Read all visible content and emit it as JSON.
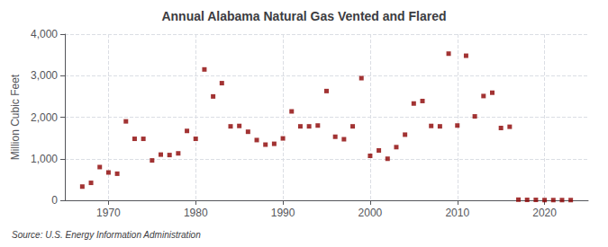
{
  "chart_data": {
    "type": "scatter",
    "title": "Annual Alabama Natural Gas Vented and Flared",
    "ylabel": "Million Cubic Feet",
    "annotation": "Source: U.S. Energy Information Administration",
    "color": "#8b0000",
    "marker": "square",
    "grid": true,
    "x": [
      1967,
      1968,
      1969,
      1970,
      1971,
      1972,
      1973,
      1974,
      1975,
      1976,
      1977,
      1978,
      1979,
      1980,
      1981,
      1982,
      1983,
      1984,
      1985,
      1986,
      1987,
      1988,
      1989,
      1990,
      1991,
      1992,
      1993,
      1994,
      1995,
      1996,
      1997,
      1998,
      1999,
      2000,
      2001,
      2002,
      2003,
      2004,
      2005,
      2006,
      2007,
      2008,
      2009,
      2010,
      2011,
      2012,
      2013,
      2014,
      2015,
      2016,
      2017,
      2018,
      2019,
      2020,
      2021,
      2022,
      2023
    ],
    "values": [
      330,
      420,
      800,
      670,
      640,
      1900,
      1480,
      1480,
      960,
      1100,
      1090,
      1130,
      1670,
      1480,
      3150,
      2500,
      2820,
      1780,
      1790,
      1650,
      1450,
      1340,
      1360,
      1490,
      2140,
      1780,
      1780,
      1800,
      2630,
      1530,
      1470,
      1780,
      2940,
      1070,
      1200,
      1000,
      1280,
      1580,
      2330,
      2390,
      1790,
      1780,
      3530,
      1800,
      3480,
      2020,
      2510,
      2590,
      1740,
      1770,
      15,
      10,
      10,
      5,
      5,
      5,
      5
    ],
    "xlim": [
      1965,
      2025
    ],
    "xticks": [
      1970,
      1980,
      1990,
      2000,
      2010,
      2020
    ],
    "ylim": [
      0,
      4000
    ],
    "yticks": [
      0,
      {
        "value": 1000,
        "label": "1,000"
      },
      {
        "value": 2000,
        "label": "2,000"
      },
      {
        "value": 3000,
        "label": "3,000"
      },
      {
        "value": 4000,
        "label": "4,000"
      }
    ]
  }
}
